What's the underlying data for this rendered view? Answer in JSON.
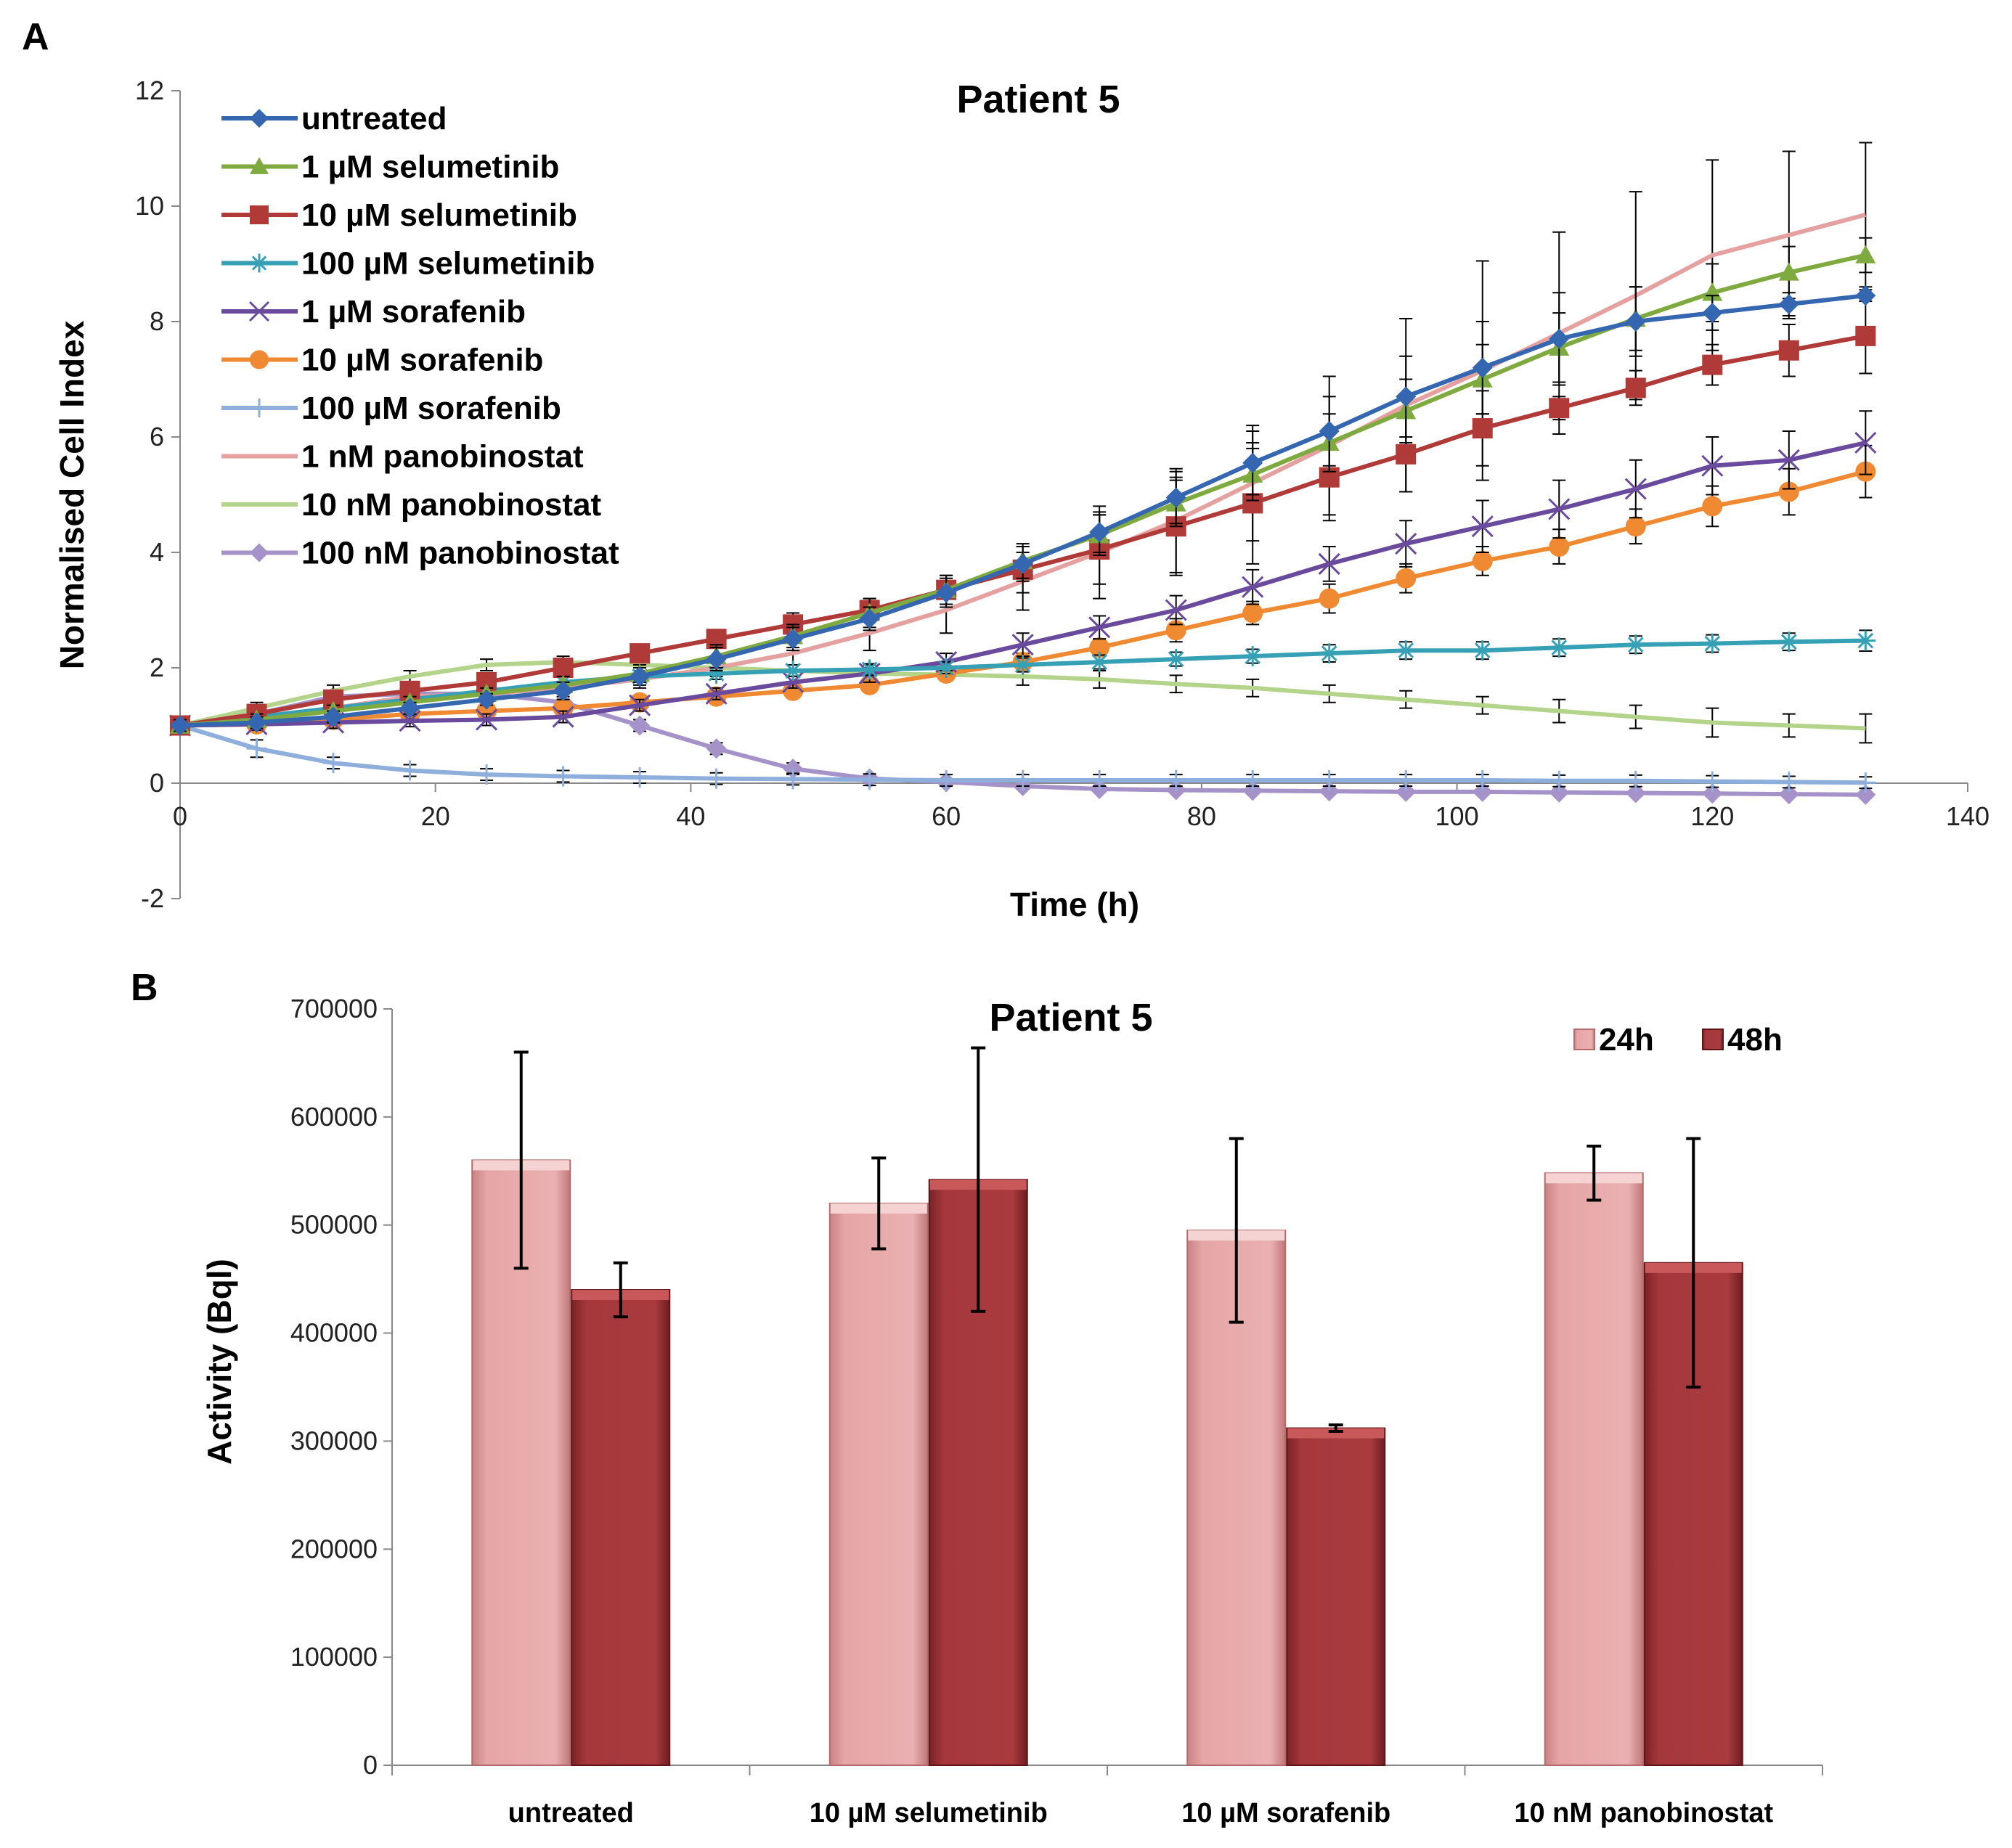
{
  "panel_a_label": "A",
  "panel_b_label": "B",
  "chart_data": [
    {
      "type": "line",
      "title": "Patient 5",
      "xlabel": "Time (h)",
      "ylabel": "Normalised Cell Index",
      "xlim": [
        0,
        140
      ],
      "ylim": [
        -2,
        12
      ],
      "xticks": [
        0,
        20,
        40,
        60,
        80,
        100,
        120,
        140
      ],
      "yticks": [
        -2,
        0,
        2,
        4,
        6,
        8,
        10,
        12
      ],
      "legend_position": "top-left",
      "x": [
        0,
        6,
        12,
        18,
        24,
        30,
        36,
        42,
        48,
        54,
        60,
        66,
        72,
        78,
        84,
        90,
        96,
        102,
        108,
        114,
        120,
        126,
        132
      ],
      "series": [
        {
          "name": "untreated",
          "color": "#3566b0",
          "marker": "diamond",
          "values": [
            1.0,
            1.05,
            1.15,
            1.3,
            1.45,
            1.6,
            1.85,
            2.15,
            2.5,
            2.85,
            3.3,
            3.8,
            4.35,
            4.95,
            5.55,
            6.1,
            6.7,
            7.2,
            7.7,
            8.0,
            8.15,
            8.3,
            8.45
          ],
          "err": [
            0.1,
            0.1,
            0.1,
            0.1,
            0.1,
            0.15,
            0.15,
            0.2,
            0.2,
            0.2,
            0.25,
            0.3,
            0.35,
            0.45,
            0.55,
            0.6,
            0.7,
            0.8,
            0.8,
            0.6,
            0.3,
            0.2,
            0.1
          ]
        },
        {
          "name": "1 µM selumetinib",
          "color": "#7faa3f",
          "marker": "triangle",
          "values": [
            1.0,
            1.1,
            1.25,
            1.4,
            1.55,
            1.7,
            1.9,
            2.2,
            2.55,
            2.95,
            3.35,
            3.85,
            4.3,
            4.85,
            5.35,
            5.9,
            6.45,
            7.0,
            7.55,
            8.05,
            8.5,
            8.85,
            9.15
          ],
          "err": [
            0.1,
            0.1,
            0.1,
            0.1,
            0.1,
            0.15,
            0.15,
            0.2,
            0.2,
            0.25,
            0.25,
            0.3,
            0.35,
            0.4,
            0.45,
            0.5,
            0.55,
            0.6,
            0.6,
            0.55,
            0.5,
            0.45,
            0.3
          ]
        },
        {
          "name": "10 µM selumetinib",
          "color": "#b03a38",
          "marker": "square",
          "values": [
            1.0,
            1.2,
            1.45,
            1.6,
            1.75,
            2.0,
            2.25,
            2.5,
            2.75,
            3.0,
            3.35,
            3.7,
            4.05,
            4.45,
            4.85,
            5.3,
            5.7,
            6.15,
            6.5,
            6.85,
            7.25,
            7.5,
            7.75
          ],
          "err": [
            0.1,
            0.1,
            0.1,
            0.1,
            0.1,
            0.1,
            0.15,
            0.15,
            0.2,
            0.2,
            0.25,
            0.4,
            0.6,
            0.85,
            1.05,
            0.75,
            0.65,
            0.65,
            0.2,
            0.3,
            0.35,
            0.45,
            0.65
          ]
        },
        {
          "name": "100 µM selumetinib",
          "color": "#36a0b5",
          "marker": "star",
          "values": [
            1.0,
            1.15,
            1.3,
            1.45,
            1.6,
            1.75,
            1.85,
            1.9,
            1.95,
            1.97,
            2.0,
            2.05,
            2.1,
            2.15,
            2.2,
            2.25,
            2.3,
            2.3,
            2.35,
            2.4,
            2.42,
            2.45,
            2.47
          ],
          "err": [
            0.1,
            0.1,
            0.1,
            0.1,
            0.1,
            0.1,
            0.1,
            0.1,
            0.1,
            0.1,
            0.1,
            0.12,
            0.12,
            0.12,
            0.12,
            0.15,
            0.15,
            0.15,
            0.15,
            0.15,
            0.15,
            0.15,
            0.18
          ]
        },
        {
          "name": "1 µM sorafenib",
          "color": "#6a4a9c",
          "marker": "x",
          "values": [
            1.0,
            1.02,
            1.05,
            1.08,
            1.1,
            1.15,
            1.35,
            1.55,
            1.75,
            1.9,
            2.1,
            2.4,
            2.7,
            3.0,
            3.4,
            3.8,
            4.15,
            4.45,
            4.75,
            5.1,
            5.5,
            5.6,
            5.9
          ],
          "err": [
            0.1,
            0.1,
            0.1,
            0.1,
            0.1,
            0.1,
            0.1,
            0.1,
            0.1,
            0.15,
            0.15,
            0.2,
            0.2,
            0.25,
            0.3,
            0.3,
            0.4,
            0.45,
            0.5,
            0.5,
            0.5,
            0.5,
            0.55
          ]
        },
        {
          "name": "10 µM sorafenib",
          "color": "#ef8a33",
          "marker": "circle",
          "values": [
            1.0,
            1.02,
            1.1,
            1.2,
            1.25,
            1.3,
            1.4,
            1.5,
            1.6,
            1.7,
            1.9,
            2.1,
            2.35,
            2.65,
            2.95,
            3.2,
            3.55,
            3.85,
            4.1,
            4.45,
            4.8,
            5.05,
            5.4
          ],
          "err": [
            0.1,
            0.1,
            0.1,
            0.1,
            0.1,
            0.1,
            0.1,
            0.1,
            0.1,
            0.1,
            0.1,
            0.15,
            0.15,
            0.2,
            0.2,
            0.25,
            0.25,
            0.25,
            0.3,
            0.3,
            0.35,
            0.4,
            0.45
          ]
        },
        {
          "name": "100 µM sorafenib",
          "color": "#8eaedb",
          "marker": "plus",
          "values": [
            1.0,
            0.6,
            0.35,
            0.22,
            0.15,
            0.12,
            0.1,
            0.08,
            0.07,
            0.06,
            0.05,
            0.05,
            0.05,
            0.05,
            0.05,
            0.05,
            0.05,
            0.05,
            0.04,
            0.04,
            0.03,
            0.02,
            0.01
          ],
          "err": [
            0.1,
            0.15,
            0.1,
            0.1,
            0.1,
            0.1,
            0.1,
            0.1,
            0.1,
            0.1,
            0.1,
            0.1,
            0.1,
            0.1,
            0.1,
            0.1,
            0.1,
            0.1,
            0.1,
            0.1,
            0.1,
            0.1,
            0.1
          ]
        },
        {
          "name": "1 nM panobinostat",
          "color": "#e5a0a0",
          "marker": "none",
          "values": [
            1.0,
            1.15,
            1.3,
            1.5,
            1.55,
            1.65,
            1.8,
            2.0,
            2.25,
            2.6,
            3.0,
            3.5,
            4.0,
            4.55,
            5.2,
            5.85,
            6.55,
            7.15,
            7.8,
            8.45,
            9.15,
            9.5,
            9.85
          ],
          "err": [
            0.1,
            0.1,
            0.1,
            0.1,
            0.1,
            0.1,
            0.15,
            0.15,
            0.2,
            0.3,
            0.4,
            0.5,
            0.8,
            0.9,
            1.0,
            1.2,
            1.5,
            1.9,
            1.75,
            1.8,
            1.65,
            1.45,
            1.25
          ]
        },
        {
          "name": "10 nM panobinostat",
          "color": "#b3d48a",
          "marker": "none",
          "values": [
            1.0,
            1.3,
            1.6,
            1.85,
            2.05,
            2.1,
            2.05,
            2.0,
            1.95,
            1.9,
            1.88,
            1.85,
            1.8,
            1.72,
            1.65,
            1.55,
            1.45,
            1.35,
            1.25,
            1.15,
            1.05,
            1.0,
            0.95
          ],
          "err": [
            0.1,
            0.1,
            0.1,
            0.1,
            0.1,
            0.1,
            0.1,
            0.1,
            0.1,
            0.1,
            0.1,
            0.15,
            0.15,
            0.15,
            0.15,
            0.15,
            0.15,
            0.15,
            0.2,
            0.2,
            0.25,
            0.2,
            0.25
          ]
        },
        {
          "name": "100 nM panobinostat",
          "color": "#a592c8",
          "marker": "diamond",
          "values": [
            1.0,
            1.2,
            1.5,
            1.55,
            1.55,
            1.4,
            1.0,
            0.6,
            0.25,
            0.08,
            0.02,
            -0.05,
            -0.1,
            -0.12,
            -0.13,
            -0.14,
            -0.15,
            -0.15,
            -0.16,
            -0.17,
            -0.18,
            -0.19,
            -0.2
          ],
          "err": [
            0.1,
            0.1,
            0.1,
            0.1,
            0.1,
            0.1,
            0.1,
            0.1,
            0.1,
            0.05,
            0.05,
            0.05,
            0.05,
            0.05,
            0.05,
            0.05,
            0.05,
            0.05,
            0.05,
            0.05,
            0.05,
            0.05,
            0.05
          ]
        }
      ]
    },
    {
      "type": "bar",
      "title": "Patient 5",
      "xlabel": "",
      "ylabel": "Activity (Bql)",
      "ylim": [
        0,
        700000
      ],
      "yticks": [
        0,
        100000,
        200000,
        300000,
        400000,
        500000,
        600000,
        700000
      ],
      "legend_position": "top-right",
      "categories": [
        "untreated",
        "10 µM selumetinib",
        "10 µM sorafenib",
        "10 nM panobinostat"
      ],
      "series": [
        {
          "name": "24h",
          "color": "#e6a5a6",
          "values": [
            560000,
            520000,
            495000,
            548000
          ],
          "err": [
            100000,
            42000,
            85000,
            25000
          ]
        },
        {
          "name": "48h",
          "color": "#9e3438",
          "values": [
            440000,
            542000,
            312000,
            465000
          ],
          "err": [
            25000,
            122000,
            3000,
            115000
          ]
        }
      ]
    }
  ]
}
